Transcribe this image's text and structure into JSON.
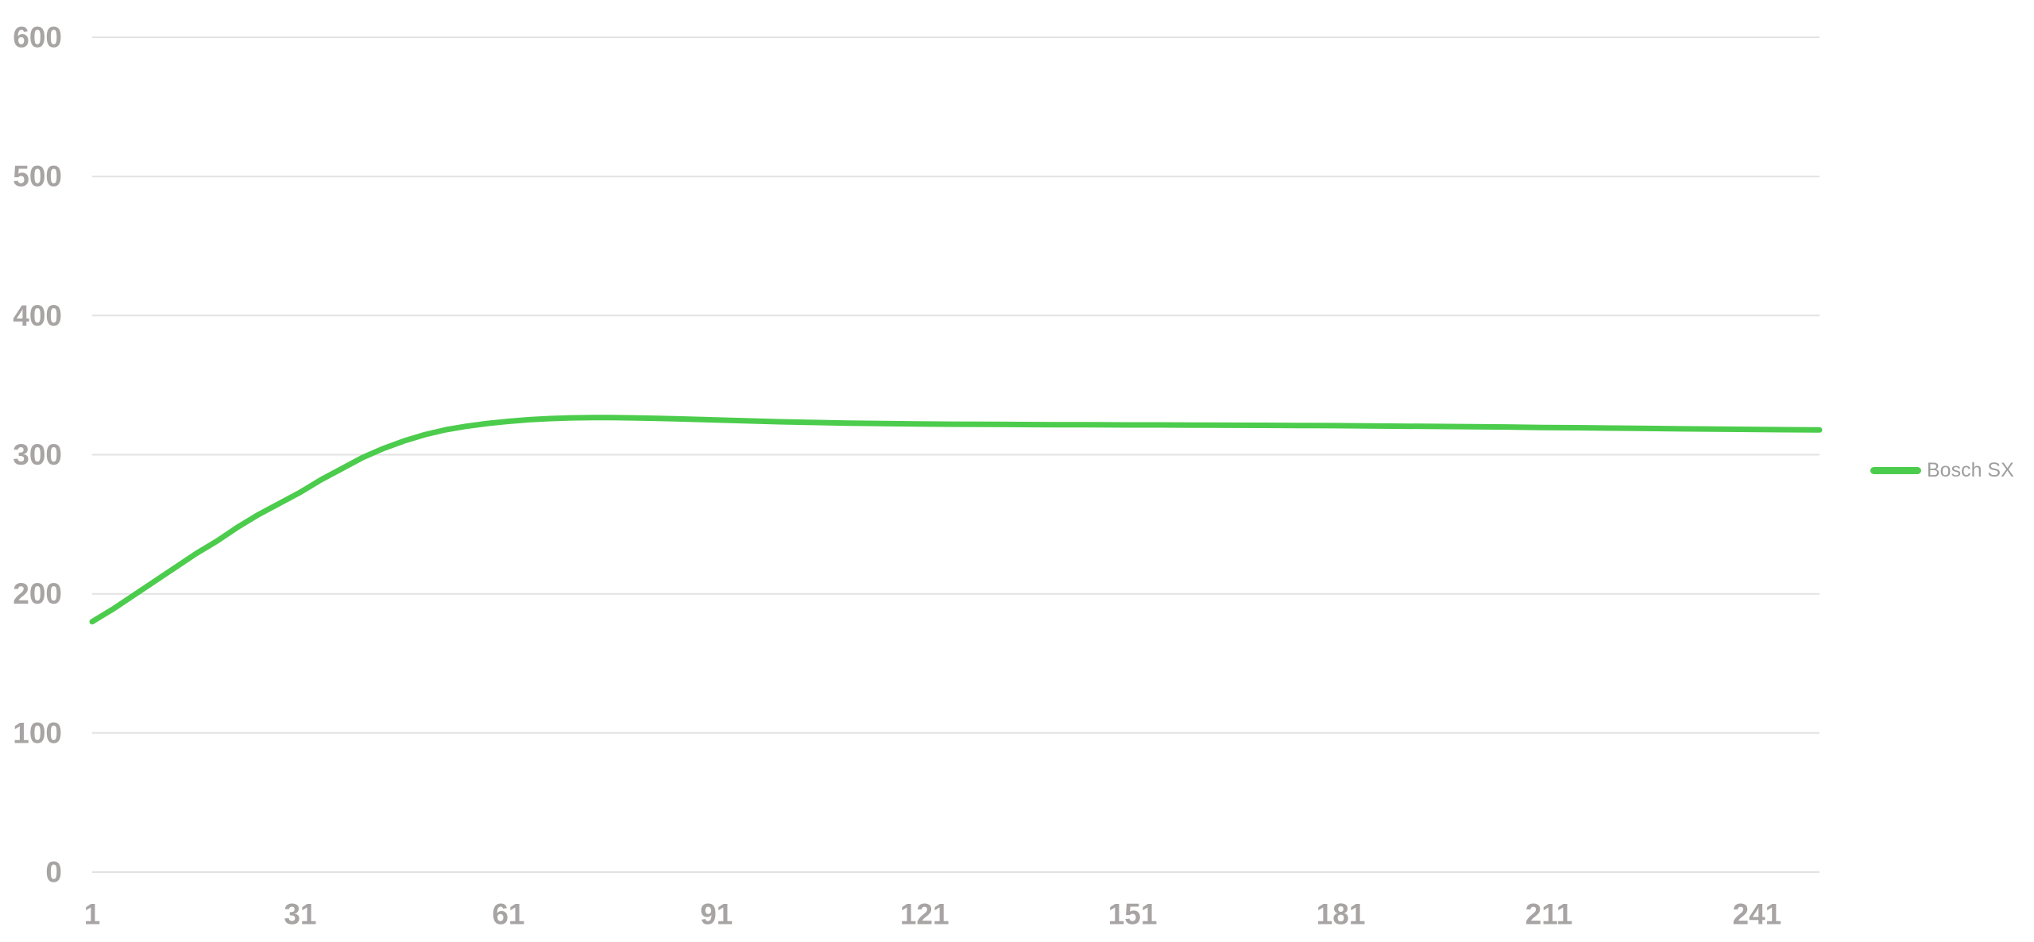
{
  "chart_data": {
    "type": "line",
    "title": "",
    "xlabel": "",
    "ylabel": "",
    "xlim": [
      1,
      250
    ],
    "ylim": [
      0,
      600
    ],
    "x_ticks": [
      1,
      31,
      61,
      91,
      121,
      151,
      181,
      211,
      241
    ],
    "y_ticks": [
      0,
      100,
      200,
      300,
      400,
      500,
      600
    ],
    "grid": "horizontal-only",
    "legend_position": "right-middle",
    "series": [
      {
        "name": "Bosch SX",
        "color": "#4ccc4c",
        "x": [
          1,
          4,
          7,
          10,
          13,
          16,
          19,
          22,
          25,
          28,
          31,
          34,
          37,
          40,
          43,
          46,
          49,
          52,
          55,
          58,
          61,
          64,
          67,
          70,
          73,
          76,
          79,
          82,
          85,
          88,
          91,
          95,
          100,
          105,
          110,
          115,
          120,
          125,
          130,
          135,
          140,
          145,
          150,
          155,
          160,
          165,
          170,
          175,
          180,
          185,
          190,
          195,
          200,
          205,
          210,
          215,
          220,
          225,
          230,
          235,
          240,
          245,
          250
        ],
        "y": [
          180,
          189,
          199,
          209,
          219,
          229,
          238,
          248,
          257,
          265,
          273,
          282,
          290,
          298,
          304.5,
          310,
          314.5,
          318,
          320.5,
          322.5,
          324,
          325.2,
          326,
          326.5,
          326.7,
          326.7,
          326.5,
          326.2,
          325.8,
          325.4,
          325,
          324.4,
          323.7,
          323.2,
          322.7,
          322.4,
          322.1,
          321.9,
          321.8,
          321.7,
          321.6,
          321.5,
          321.4,
          321.4,
          321.3,
          321.2,
          321.1,
          321,
          320.9,
          320.7,
          320.5,
          320.3,
          320.1,
          319.9,
          319.6,
          319.4,
          319.1,
          318.9,
          318.6,
          318.4,
          318.2,
          318,
          317.8
        ]
      }
    ]
  },
  "legend": {
    "label": "Bosch SX"
  },
  "colors": {
    "series": "#4ccc4c",
    "grid": "#e2e2e2",
    "axis_text": "#a8a4a4",
    "legend_text": "#9e9e9e",
    "background": "#ffffff"
  }
}
